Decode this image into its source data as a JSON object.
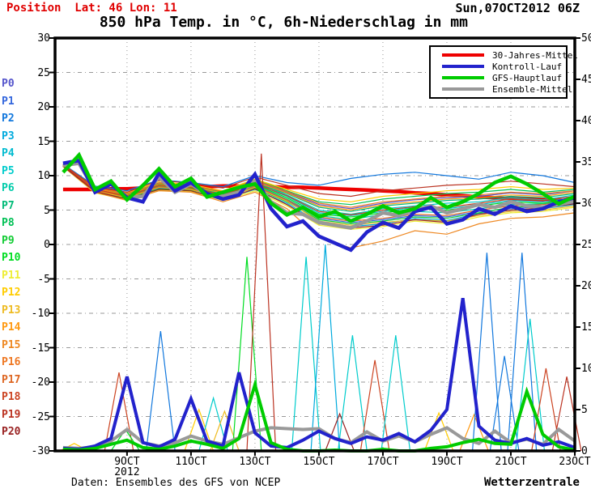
{
  "header": {
    "position": "Position  Lat: 46 Lon: 11",
    "datetime": "Sun,07OCT2012 06Z",
    "title": "850 hPa Temp. in °C, 6h-Niederschlag in mm"
  },
  "footer": {
    "left": "Daten: Ensembles des GFS von NCEP",
    "right": "Wetterzentrale"
  },
  "legend": [
    {
      "label": "30-Jahres-Mittel",
      "color": "#ee0000"
    },
    {
      "label": "Kontroll-Lauf",
      "color": "#2222cc"
    },
    {
      "label": "GFS-Hauptlauf",
      "color": "#00cc00"
    },
    {
      "label": "Ensemble-Mittel",
      "color": "#999999"
    }
  ],
  "axes": {
    "left_ticks": [
      "30",
      "25",
      "20",
      "15",
      "10",
      "5",
      "0",
      "-5",
      "-10",
      "-15",
      "-20",
      "-25",
      "-30"
    ],
    "right_ticks": [
      "50",
      "45",
      "40",
      "35",
      "30",
      "25",
      "20",
      "15",
      "10",
      "5",
      "0"
    ],
    "x_ticks": [
      "9OCT",
      "11OCT",
      "13OCT",
      "15OCT",
      "17OCT",
      "19OCT",
      "21OCT",
      "23OCT"
    ],
    "year_label": "2012"
  },
  "chart_data": {
    "type": "line",
    "title": "850 hPa Temp. in °C, 6h-Niederschlag in mm",
    "x_start": "07OCT2012 00Z",
    "x_end": "23OCT2012 06Z",
    "x_total_days": 16.25,
    "data_start_offset_days": 0.25,
    "ylim_left_temp_c": [
      -30,
      30
    ],
    "ylim_right_precip_mm": [
      0,
      50
    ],
    "grid": "dotted-gray",
    "legend_position": "top-right-inset",
    "step_days_main": 0.5,
    "step_days_members": 1.0,
    "main_series": [
      {
        "id": "mean30y",
        "label": "30-Jahres-Mittel",
        "axis": "temp",
        "color": "#ee0000",
        "width": 4.5,
        "values": [
          8.0,
          8.0,
          8.0,
          8.1,
          8.1,
          8.2,
          8.2,
          8.3,
          8.4,
          8.4,
          8.5,
          8.5,
          8.4,
          8.4,
          8.3,
          8.3,
          8.2,
          8.1,
          8.0,
          7.9,
          7.8,
          7.7,
          7.5,
          7.4,
          7.2,
          7.1,
          6.9,
          6.8,
          6.7,
          6.6,
          6.5,
          6.4,
          6.3
        ]
      },
      {
        "id": "ensemble-mittel",
        "label": "Ensemble-Mittel",
        "axis": "temp",
        "color": "#999999",
        "width": 4.5,
        "values": [
          11.5,
          11.8,
          7.8,
          8.8,
          6.8,
          7.0,
          9.8,
          7.6,
          8.8,
          7.2,
          7.0,
          7.6,
          9.2,
          6.2,
          4.6,
          4.4,
          3.2,
          2.8,
          2.4,
          3.4,
          4.6,
          4.2,
          5.0,
          5.6,
          4.6,
          5.2,
          5.8,
          5.4,
          6.2,
          5.6,
          5.4,
          5.8,
          6.3
        ]
      },
      {
        "id": "kontroll-lauf",
        "label": "Kontroll-Lauf",
        "axis": "temp",
        "color": "#2222cc",
        "width": 4.5,
        "values": [
          11.8,
          12.2,
          7.6,
          8.8,
          6.8,
          6.2,
          10.4,
          7.8,
          9.0,
          7.4,
          6.6,
          7.2,
          10.2,
          5.2,
          2.6,
          3.4,
          1.2,
          0.2,
          -0.8,
          1.8,
          3.2,
          2.4,
          4.8,
          5.4,
          3.0,
          3.6,
          5.2,
          4.4,
          5.6,
          4.8,
          5.2,
          6.2,
          6.8
        ]
      },
      {
        "id": "gfs-hauptlauf",
        "label": "GFS-Hauptlauf",
        "axis": "temp",
        "color": "#00cc00",
        "width": 4.5,
        "values": [
          10.5,
          13.0,
          8.0,
          9.2,
          6.5,
          8.6,
          11.0,
          8.4,
          9.6,
          6.9,
          7.6,
          8.3,
          8.8,
          6.0,
          4.3,
          5.4,
          4.0,
          4.8,
          3.4,
          4.4,
          5.6,
          4.6,
          5.2,
          6.8,
          5.4,
          6.2,
          7.4,
          9.0,
          9.9,
          8.8,
          7.4,
          5.9,
          7.0
        ]
      }
    ],
    "main_precip_series": [
      {
        "id": "ensemble-mittel-precip",
        "label": "Ensemble-Mittel",
        "axis": "precip",
        "color": "#999999",
        "width": 4,
        "values": [
          0.4,
          0.3,
          0.5,
          1.2,
          2.6,
          1.0,
          0.6,
          1.0,
          1.8,
          1.2,
          0.8,
          1.6,
          2.4,
          2.8,
          2.7,
          2.6,
          2.7,
          1.5,
          1.0,
          2.3,
          1.2,
          1.8,
          1.1,
          2.0,
          2.8,
          1.5,
          0.9,
          2.4,
          1.0,
          1.4,
          0.8,
          2.6,
          1.2
        ]
      },
      {
        "id": "kontroll-lauf-precip",
        "label": "Kontroll-Lauf",
        "axis": "precip",
        "color": "#2222cc",
        "width": 4,
        "values": [
          0.3,
          0.2,
          0.6,
          1.5,
          9.0,
          1.0,
          0.5,
          1.4,
          6.3,
          1.2,
          0.6,
          9.5,
          2.2,
          0.6,
          0.4,
          1.3,
          2.4,
          1.5,
          0.9,
          1.7,
          1.3,
          2.1,
          1.1,
          2.5,
          5.0,
          18.5,
          3.0,
          1.3,
          0.9,
          1.5,
          0.7,
          1.1,
          0.4
        ]
      },
      {
        "id": "gfs-hauptlauf-precip",
        "label": "GFS-Hauptlauf",
        "axis": "precip",
        "color": "#00cc00",
        "width": 4,
        "values": [
          0.2,
          0.1,
          0.3,
          0.8,
          1.3,
          0.4,
          0.2,
          0.6,
          1.2,
          0.8,
          0.3,
          1.5,
          8.0,
          1.0,
          0.2,
          0.0,
          0.0,
          0.1,
          0.0,
          0.0,
          0.2,
          0.0,
          0.0,
          0.3,
          0.5,
          1.0,
          1.4,
          0.9,
          0.8,
          7.2,
          2.0,
          0.5,
          0.1
        ]
      }
    ],
    "ensemble_members": [
      {
        "name": "P0",
        "color": "#5555cc",
        "temp": [
          11.6,
          8.2,
          7.4,
          9.0,
          8.6,
          7.6,
          9.2,
          7.6,
          5.8,
          5.2,
          6.0,
          6.5,
          6.8,
          7.0,
          7.5,
          7.2,
          7.8
        ]
      },
      {
        "name": "P1",
        "color": "#3366dd",
        "temp": [
          11.4,
          7.8,
          6.8,
          8.2,
          8.0,
          6.8,
          8.4,
          6.4,
          3.8,
          3.2,
          3.6,
          4.2,
          4.0,
          4.8,
          5.2,
          5.5,
          6.0
        ]
      },
      {
        "name": "P2",
        "color": "#1177dd",
        "temp": [
          11.7,
          8.5,
          7.8,
          9.4,
          9.0,
          8.4,
          10.0,
          9.0,
          8.6,
          9.6,
          10.2,
          10.5,
          10.0,
          9.5,
          10.5,
          10.0,
          9.0
        ]
      },
      {
        "name": "P3",
        "color": "#00aadd",
        "temp": [
          11.3,
          7.6,
          6.6,
          8.0,
          7.8,
          6.6,
          8.0,
          6.0,
          3.2,
          2.6,
          3.0,
          3.8,
          3.5,
          4.5,
          5.0,
          5.2,
          5.8
        ]
      },
      {
        "name": "P4",
        "color": "#00bbd0",
        "temp": [
          11.5,
          8.0,
          7.2,
          8.6,
          8.4,
          7.2,
          8.8,
          7.0,
          4.6,
          4.2,
          4.8,
          5.4,
          5.2,
          5.8,
          6.4,
          6.2,
          6.8
        ]
      },
      {
        "name": "P5",
        "color": "#00cccc",
        "temp": [
          11.6,
          8.1,
          7.0,
          8.8,
          8.2,
          7.4,
          9.0,
          7.2,
          5.0,
          4.4,
          5.2,
          5.6,
          6.0,
          6.2,
          6.8,
          6.5,
          7.2
        ]
      },
      {
        "name": "P6",
        "color": "#00ccaa",
        "temp": [
          11.4,
          7.9,
          6.9,
          8.4,
          8.1,
          7.0,
          8.6,
          6.6,
          4.2,
          3.6,
          4.4,
          4.8,
          4.6,
          5.2,
          5.8,
          5.9,
          6.4
        ]
      },
      {
        "name": "P7",
        "color": "#00bb77",
        "temp": [
          11.5,
          8.0,
          7.1,
          8.5,
          8.3,
          7.3,
          8.9,
          7.4,
          5.4,
          4.8,
          5.6,
          6.0,
          6.4,
          6.6,
          7.0,
          6.8,
          7.4
        ]
      },
      {
        "name": "P8",
        "color": "#00c055",
        "temp": [
          11.6,
          8.2,
          7.3,
          8.8,
          8.5,
          7.6,
          9.4,
          7.8,
          6.2,
          5.8,
          6.6,
          7.0,
          7.4,
          7.6,
          8.0,
          7.6,
          8.0
        ]
      },
      {
        "name": "P9",
        "color": "#11cc33",
        "temp": [
          11.4,
          7.7,
          6.7,
          8.1,
          7.9,
          6.9,
          8.2,
          6.2,
          3.6,
          3.0,
          3.4,
          4.0,
          3.8,
          4.6,
          5.4,
          5.6,
          6.2
        ]
      },
      {
        "name": "P10",
        "color": "#00dd22",
        "temp": [
          11.5,
          8.0,
          7.0,
          8.6,
          8.2,
          7.1,
          8.7,
          6.8,
          4.4,
          4.0,
          4.6,
          5.2,
          5.0,
          5.6,
          6.2,
          6.0,
          6.6
        ]
      },
      {
        "name": "P11",
        "color": "#eeee33",
        "temp": [
          11.3,
          7.5,
          6.5,
          7.9,
          7.7,
          6.4,
          7.8,
          5.6,
          2.8,
          2.2,
          2.6,
          3.4,
          3.0,
          4.0,
          4.6,
          4.8,
          5.4
        ]
      },
      {
        "name": "P12",
        "color": "#ffcc00",
        "temp": [
          11.6,
          8.3,
          7.5,
          9.1,
          8.7,
          7.8,
          9.5,
          8.0,
          6.6,
          6.2,
          7.0,
          7.4,
          7.8,
          8.0,
          8.4,
          8.0,
          8.2
        ]
      },
      {
        "name": "P13",
        "color": "#eebb22",
        "temp": [
          11.4,
          7.8,
          6.8,
          8.3,
          8.0,
          6.7,
          8.3,
          6.3,
          3.4,
          2.8,
          3.2,
          3.6,
          3.4,
          4.2,
          4.8,
          5.0,
          5.6
        ]
      },
      {
        "name": "P14",
        "color": "#ff9911",
        "temp": [
          11.5,
          8.1,
          7.2,
          8.7,
          8.4,
          7.5,
          9.1,
          7.5,
          5.6,
          5.0,
          5.8,
          6.2,
          6.6,
          6.8,
          7.2,
          7.0,
          7.6
        ]
      },
      {
        "name": "P15",
        "color": "#ee8822",
        "temp": [
          11.3,
          7.6,
          6.4,
          7.8,
          7.6,
          6.2,
          7.6,
          5.2,
          1.0,
          -0.5,
          0.5,
          2.0,
          1.5,
          3.0,
          3.8,
          4.0,
          4.6
        ]
      },
      {
        "name": "P16",
        "color": "#ee7722",
        "temp": [
          11.6,
          8.2,
          7.4,
          8.9,
          8.6,
          7.7,
          9.3,
          7.7,
          6.0,
          5.4,
          6.2,
          6.6,
          7.0,
          7.2,
          7.6,
          7.4,
          7.8
        ]
      },
      {
        "name": "P17",
        "color": "#dd6622",
        "temp": [
          11.4,
          7.9,
          6.9,
          8.4,
          8.1,
          6.9,
          8.5,
          6.5,
          4.0,
          3.4,
          3.8,
          4.4,
          4.2,
          5.0,
          5.6,
          5.8,
          6.3
        ]
      },
      {
        "name": "P18",
        "color": "#cc4422",
        "temp": [
          11.5,
          8.0,
          7.1,
          8.6,
          8.3,
          7.2,
          8.8,
          7.1,
          4.8,
          4.3,
          5.0,
          5.5,
          5.4,
          6.0,
          6.6,
          6.4,
          7.0
        ]
      },
      {
        "name": "P19",
        "color": "#bb3322",
        "temp": [
          11.6,
          8.3,
          7.6,
          9.3,
          8.9,
          8.2,
          9.8,
          8.6,
          7.4,
          7.0,
          7.8,
          8.2,
          8.6,
          8.8,
          9.2,
          8.8,
          8.4
        ]
      },
      {
        "name": "P20",
        "color": "#992222",
        "temp": [
          11.4,
          7.7,
          6.6,
          8.0,
          7.8,
          6.5,
          8.1,
          5.8,
          3.0,
          2.4,
          2.8,
          3.6,
          3.2,
          4.4,
          5.0,
          5.3,
          5.9
        ]
      }
    ],
    "member_precip_spikes_mm": [
      {
        "member": "P12",
        "t_days": 0.6,
        "peak": 0.9
      },
      {
        "member": "P18",
        "t_days": 2.0,
        "peak": 9.5
      },
      {
        "member": "P10",
        "t_days": 2.2,
        "peak": 2.6
      },
      {
        "member": "P2",
        "t_days": 3.3,
        "peak": 14.5
      },
      {
        "member": "P12",
        "t_days": 4.5,
        "peak": 5.0
      },
      {
        "member": "P5",
        "t_days": 4.95,
        "peak": 6.4
      },
      {
        "member": "P13",
        "t_days": 5.3,
        "peak": 4.8
      },
      {
        "member": "P10",
        "t_days": 6.0,
        "peak": 23.5
      },
      {
        "member": "P19",
        "t_days": 6.45,
        "peak": 36.0
      },
      {
        "member": "P5",
        "t_days": 7.85,
        "peak": 23.5
      },
      {
        "member": "P3",
        "t_days": 8.45,
        "peak": 25.0
      },
      {
        "member": "P20",
        "t_days": 8.9,
        "peak": 4.5
      },
      {
        "member": "P5",
        "t_days": 9.3,
        "peak": 14.0
      },
      {
        "member": "P18",
        "t_days": 10.0,
        "peak": 11.0
      },
      {
        "member": "P5",
        "t_days": 10.65,
        "peak": 14.0
      },
      {
        "member": "P12",
        "t_days": 12.0,
        "peak": 4.6
      },
      {
        "member": "P14",
        "t_days": 13.1,
        "peak": 4.4
      },
      {
        "member": "P2",
        "t_days": 13.5,
        "peak": 24.0
      },
      {
        "member": "P2",
        "t_days": 14.05,
        "peak": 11.5
      },
      {
        "member": "P2",
        "t_days": 14.6,
        "peak": 24.0
      },
      {
        "member": "P5",
        "t_days": 14.85,
        "peak": 16.0
      },
      {
        "member": "P18",
        "t_days": 15.35,
        "peak": 10.0
      },
      {
        "member": "P19",
        "t_days": 16.0,
        "peak": 9.0
      }
    ]
  }
}
